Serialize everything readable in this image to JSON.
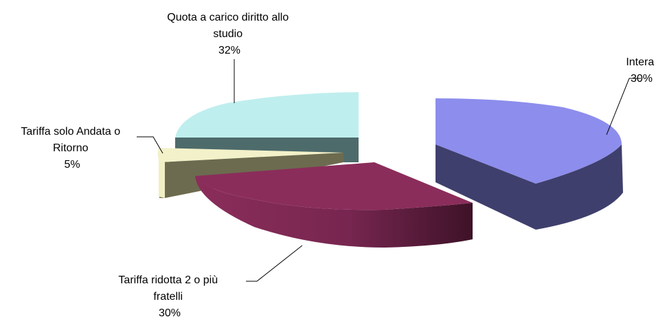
{
  "chart_data": {
    "type": "pie",
    "title": "",
    "style": "3d-exploded",
    "legend": "none",
    "slices": [
      {
        "label_lines": [
          "Intera"
        ],
        "percent_label": "30%",
        "value": 30,
        "color": "#8d8ded",
        "side_color": "#3f3f6d"
      },
      {
        "label_lines": [
          "Tariffa ridotta 2 o più",
          "fratelli"
        ],
        "percent_label": "30%",
        "value": 30,
        "color": "#8b2d5b",
        "side_color": "#7a2650"
      },
      {
        "label_lines": [
          "Tariffa solo Andata o",
          "Ritorno"
        ],
        "percent_label": "5%",
        "value": 5,
        "color": "#f3f1c9",
        "side_color": "#6c6b4f"
      },
      {
        "label_lines": [
          "Quota a carico diritto allo",
          "studio"
        ],
        "percent_label": "32%",
        "value": 32,
        "color": "#bfeeee",
        "side_color": "#4e6b6b"
      }
    ]
  }
}
